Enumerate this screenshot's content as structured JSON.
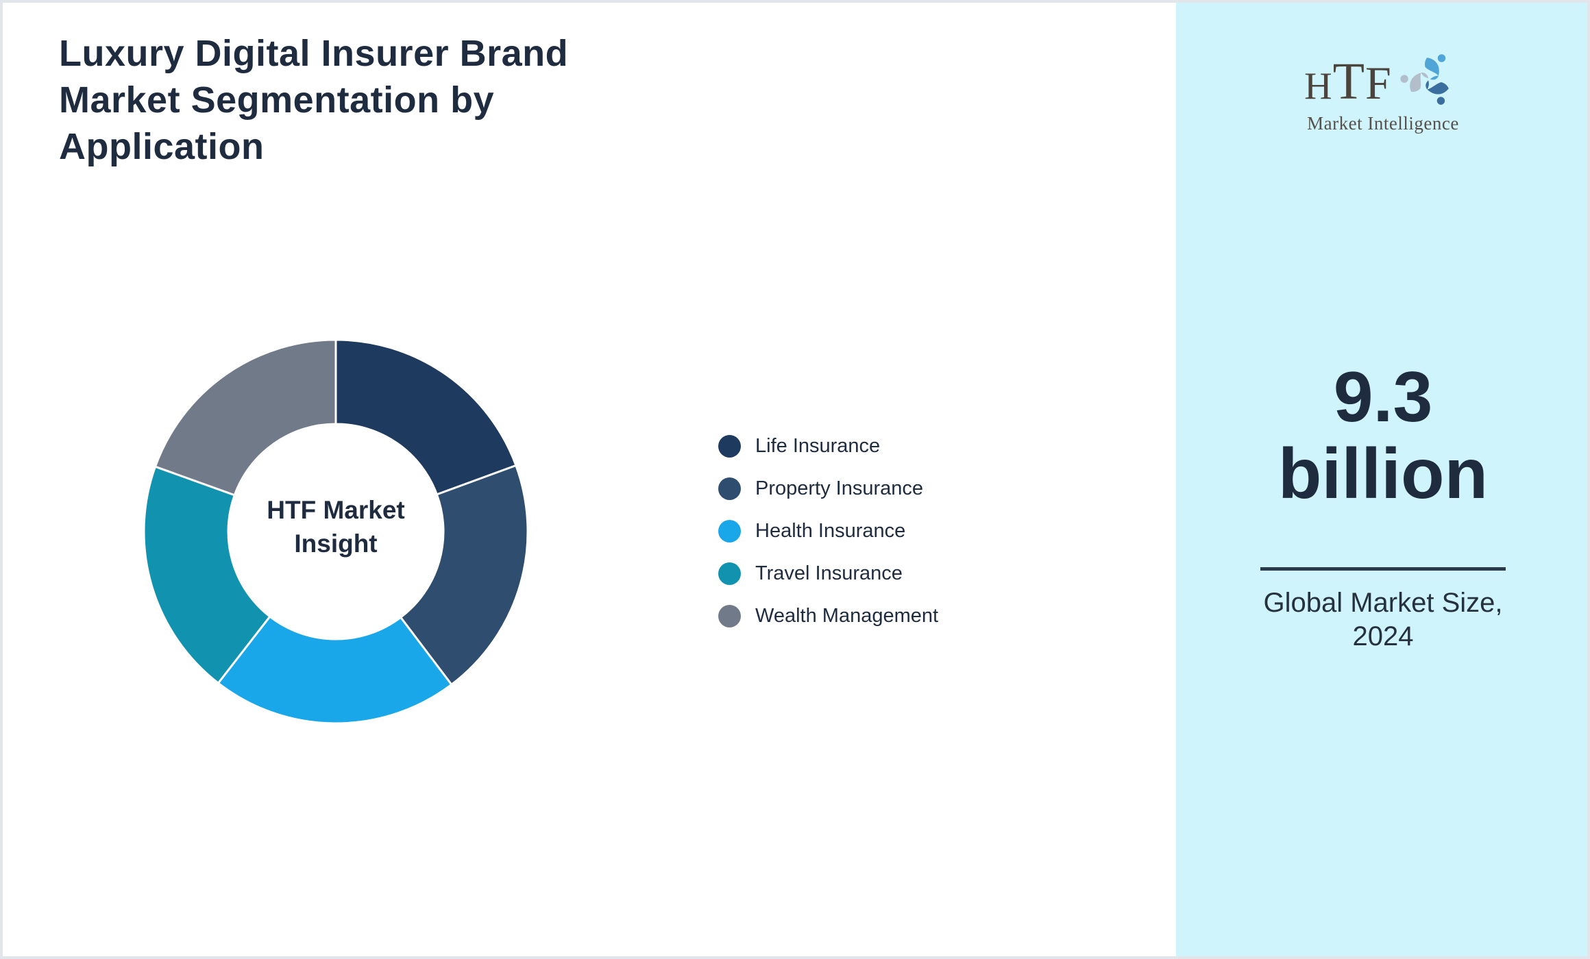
{
  "frame": {
    "background": "#FFFFFF",
    "border_color": "#E2E6EA"
  },
  "title": {
    "text": "Luxury Digital Insurer Brand Market Segmentation by Application",
    "lines": [
      "Luxury Digital Insurer Brand",
      "Market Segmentation by",
      "Application"
    ],
    "color": "#1F2C3F"
  },
  "logo": {
    "letters": [
      "H",
      "T",
      "F"
    ],
    "subtitle": "Market Intelligence",
    "swirl_colors": [
      "#4FA5D6",
      "#3A6E9F",
      "#B2BEC9"
    ]
  },
  "sidebar": {
    "background": "#CFF4FB",
    "metric_value": "9.3",
    "metric_unit": "billion",
    "caption": "Global Market Size, 2024",
    "text_color": "#1F2C3F",
    "divider_color": "#2A3A4A"
  },
  "chart_data": {
    "type": "pie",
    "subtype": "donut",
    "title": "Luxury Digital Insurer Brand Market Segmentation by Application",
    "center_label_lines": [
      "HTF Market",
      "Insight"
    ],
    "hole_ratio": 0.56,
    "start_angle_deg": 0,
    "direction": "clockwise",
    "legend_position": "right",
    "units": "percent",
    "segments": [
      {
        "label": "Life Insurance",
        "value": 19.4,
        "color": "#1E3A5F"
      },
      {
        "label": "Property Insurance",
        "value": 20.3,
        "color": "#2F4D6E"
      },
      {
        "label": "Health Insurance",
        "value": 20.8,
        "color": "#1AA7E9"
      },
      {
        "label": "Travel Insurance",
        "value": 20.0,
        "color": "#1193AF"
      },
      {
        "label": "Wealth Management",
        "value": 19.5,
        "color": "#717A89"
      }
    ],
    "separator": {
      "color": "#FFFFFF",
      "width": 3
    }
  }
}
